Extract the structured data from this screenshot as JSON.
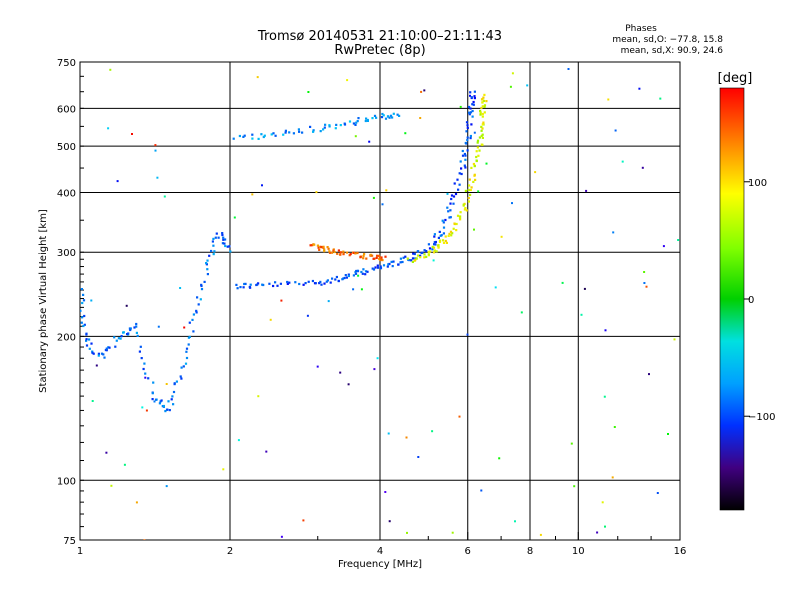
{
  "chart_data": {
    "type": "scatter",
    "title": "Tromsø 20140531 21:10:00–21:11:43",
    "subtitle": "RwPretec (8p)",
    "xlabel": "Frequency [MHz]",
    "ylabel": "Stationary phase Virtual Height [km]",
    "x_scale": "log",
    "y_scale": "log",
    "xlim": [
      1,
      16
    ],
    "ylim": [
      75,
      750
    ],
    "x_ticks": [
      1,
      2,
      4,
      6,
      8,
      10,
      16
    ],
    "x_tick_labels": [
      "1",
      "2",
      "4",
      "6",
      "8",
      "10",
      "16"
    ],
    "y_ticks": [
      75,
      100,
      200,
      300,
      400,
      500,
      600,
      750
    ],
    "y_tick_labels": [
      "75",
      "100",
      "200",
      "300",
      "400",
      "500",
      "600",
      "750"
    ],
    "grid": true,
    "phases_legend": {
      "title": "Phases",
      "line1": "mean, sd,O: −77.8, 15.8",
      "line2": "mean, sd,X:  90.9, 24.6"
    },
    "colorbar": {
      "title": "[deg]",
      "tick_labels": [
        "100",
        "0",
        "−100"
      ],
      "tick_values": [
        100,
        0,
        -100
      ],
      "range": [
        -180,
        180
      ]
    },
    "traces": [
      {
        "role": "O-mode F2 lower trace",
        "phase_deg": -90,
        "points": [
          [
            2.05,
            255
          ],
          [
            2.3,
            256
          ],
          [
            2.8,
            258
          ],
          [
            3.2,
            262
          ],
          [
            3.5,
            268
          ],
          [
            3.8,
            275
          ],
          [
            4.2,
            283
          ],
          [
            4.6,
            292
          ],
          [
            5.0,
            305
          ],
          [
            5.3,
            330
          ],
          [
            5.6,
            380
          ],
          [
            5.85,
            450
          ],
          [
            6.0,
            520
          ],
          [
            6.1,
            600
          ],
          [
            6.15,
            650
          ]
        ]
      },
      {
        "role": "X-mode F2 trace",
        "phase_deg": 100,
        "points": [
          [
            4.6,
            288
          ],
          [
            5.0,
            298
          ],
          [
            5.3,
            312
          ],
          [
            5.6,
            335
          ],
          [
            5.9,
            370
          ],
          [
            6.1,
            420
          ],
          [
            6.3,
            480
          ],
          [
            6.4,
            540
          ],
          [
            6.45,
            600
          ],
          [
            6.5,
            640
          ]
        ]
      },
      {
        "role": "upper echo trace",
        "phase_deg": -70,
        "points": [
          [
            2.05,
            520
          ],
          [
            2.5,
            530
          ],
          [
            3.0,
            545
          ],
          [
            3.5,
            560
          ],
          [
            4.0,
            575
          ],
          [
            4.4,
            585
          ]
        ]
      },
      {
        "role": "X-mode cluster near 3 MHz",
        "phase_deg": 150,
        "points": [
          [
            2.9,
            310
          ],
          [
            3.1,
            305
          ],
          [
            3.3,
            300
          ],
          [
            3.6,
            298
          ],
          [
            3.9,
            292
          ],
          [
            4.1,
            290
          ]
        ]
      },
      {
        "role": "E/F1 low-frequency traces",
        "phase_deg": -80,
        "points": [
          [
            1.0,
            250
          ],
          [
            1.02,
            200
          ],
          [
            1.1,
            180
          ],
          [
            1.2,
            200
          ],
          [
            1.3,
            210
          ],
          [
            1.4,
            150
          ],
          [
            1.5,
            140
          ],
          [
            1.6,
            170
          ],
          [
            1.7,
            220
          ],
          [
            1.8,
            280
          ],
          [
            1.9,
            330
          ],
          [
            2.0,
            300
          ]
        ]
      }
    ]
  }
}
